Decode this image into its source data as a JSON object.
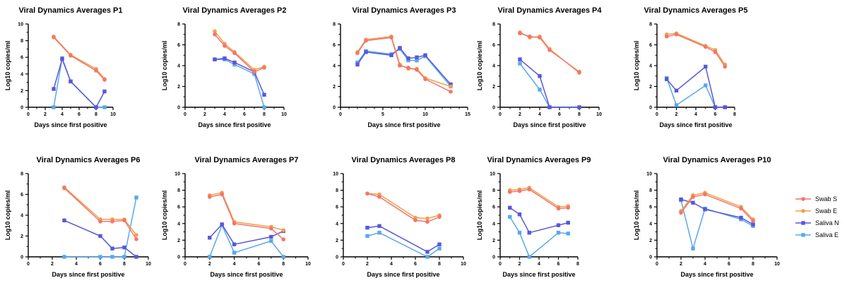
{
  "colors": {
    "swab_s": "#f4756a",
    "swab_e": "#f0a04b",
    "saliva_n": "#5757d9",
    "saliva_e": "#5aa8ea"
  },
  "legend": [
    {
      "name": "Swab S",
      "color": "#f4756a",
      "marker": "circle"
    },
    {
      "name": "Swab E",
      "color": "#f0a04b",
      "marker": "circle"
    },
    {
      "name": "Saliva N",
      "color": "#5757d9",
      "marker": "square"
    },
    {
      "name": "Saliva E",
      "color": "#5aa8ea",
      "marker": "square"
    }
  ],
  "chart_data": [
    {
      "type": "line",
      "title": "Viral Dynamics Averages P1",
      "xlabel": "Days since first positive",
      "ylabel": "Log10 copies/ml",
      "xlim": [
        0,
        10
      ],
      "ylim": [
        0,
        10
      ],
      "xticks": [
        0,
        2,
        4,
        6,
        8,
        10
      ],
      "yticks": [
        0,
        2,
        4,
        6,
        8,
        10
      ],
      "series": [
        {
          "name": "Swab S",
          "x": [
            3,
            5,
            8,
            9
          ],
          "y": [
            8.4,
            6.2,
            4.4,
            3.3
          ]
        },
        {
          "name": "Swab E",
          "x": [
            3,
            5,
            8,
            9
          ],
          "y": [
            8.5,
            6.3,
            4.6,
            3.4
          ]
        },
        {
          "name": "Saliva N",
          "x": [
            3,
            4,
            5,
            8,
            9
          ],
          "y": [
            2.2,
            5.8,
            3.1,
            0,
            1.9
          ]
        },
        {
          "name": "Saliva E",
          "x": [
            3,
            4,
            5,
            8,
            9
          ],
          "y": [
            0,
            5.9,
            3.1,
            0,
            0
          ]
        }
      ]
    },
    {
      "type": "line",
      "title": "Viral Dynamics Averages P2",
      "xlabel": "Days since first positive",
      "ylabel": "Log10 copies/ml",
      "xlim": [
        0,
        10
      ],
      "ylim": [
        0,
        8
      ],
      "xticks": [
        0,
        2,
        4,
        6,
        8,
        10
      ],
      "yticks": [
        0,
        2,
        4,
        6,
        8
      ],
      "series": [
        {
          "name": "Swab S",
          "x": [
            3,
            4,
            5,
            7,
            8
          ],
          "y": [
            7.0,
            5.9,
            5.2,
            3.4,
            3.8
          ]
        },
        {
          "name": "Swab E",
          "x": [
            3,
            4,
            5,
            7,
            8
          ],
          "y": [
            7.3,
            6.1,
            5.3,
            3.6,
            3.9
          ]
        },
        {
          "name": "Saliva N",
          "x": [
            3,
            4,
            5,
            7,
            8
          ],
          "y": [
            4.6,
            4.7,
            4.3,
            3.4,
            1.2
          ]
        },
        {
          "name": "Saliva E",
          "x": [
            3,
            4,
            5,
            7,
            8
          ],
          "y": [
            4.6,
            4.6,
            4.1,
            3.2,
            0
          ]
        }
      ]
    },
    {
      "type": "line",
      "title": "Viral Dynamics Averages P3",
      "xlabel": "Days since first positive",
      "ylabel": "",
      "xlim": [
        0,
        15
      ],
      "ylim": [
        0,
        8
      ],
      "xticks": [
        0,
        5,
        10,
        15
      ],
      "yticks": [
        0,
        2,
        4,
        6,
        8
      ],
      "series": [
        {
          "name": "Swab S",
          "x": [
            2,
            3,
            6,
            7,
            8,
            9,
            10,
            13
          ],
          "y": [
            5.2,
            6.4,
            6.7,
            4.0,
            3.8,
            3.6,
            2.7,
            1.5
          ]
        },
        {
          "name": "Swab E",
          "x": [
            2,
            3,
            6,
            7,
            8,
            9,
            10,
            13
          ],
          "y": [
            5.3,
            6.5,
            6.8,
            4.1,
            3.7,
            3.7,
            2.8,
            2.0
          ]
        },
        {
          "name": "Saliva N",
          "x": [
            2,
            3,
            6,
            7,
            8,
            9,
            10,
            13
          ],
          "y": [
            4.1,
            5.3,
            5.0,
            5.7,
            4.7,
            4.8,
            5.0,
            2.2
          ]
        },
        {
          "name": "Saliva E",
          "x": [
            2,
            3,
            6,
            7,
            8,
            9,
            10,
            13
          ],
          "y": [
            4.3,
            5.4,
            5.1,
            5.6,
            4.5,
            4.5,
            4.9,
            2.0
          ]
        }
      ]
    },
    {
      "type": "line",
      "title": "Viral Dynamics Averages P4",
      "xlabel": "Days since first positive",
      "ylabel": "Log10 copies/ml",
      "xlim": [
        0,
        10
      ],
      "ylim": [
        0,
        8
      ],
      "xticks": [
        0,
        2,
        4,
        6,
        8,
        10
      ],
      "yticks": [
        0,
        2,
        4,
        6,
        8
      ],
      "series": [
        {
          "name": "Swab S",
          "x": [
            2,
            3,
            4,
            5,
            8
          ],
          "y": [
            7.1,
            6.8,
            6.7,
            5.5,
            3.4
          ]
        },
        {
          "name": "Swab E",
          "x": [
            2,
            3,
            4,
            5,
            8
          ],
          "y": [
            7.2,
            6.7,
            6.8,
            5.6,
            3.3
          ]
        },
        {
          "name": "Saliva N",
          "x": [
            2,
            4,
            5,
            8
          ],
          "y": [
            4.6,
            3.0,
            0,
            0
          ]
        },
        {
          "name": "Saliva E",
          "x": [
            2,
            4,
            5,
            8
          ],
          "y": [
            4.2,
            1.7,
            0,
            0
          ]
        }
      ]
    },
    {
      "type": "line",
      "title": "Viral Dynamics Averages P5",
      "xlabel": "Days since first positive",
      "ylabel": "Log10 copies/ml",
      "xlim": [
        0,
        8
      ],
      "ylim": [
        0,
        8
      ],
      "xticks": [
        0,
        2,
        4,
        6,
        8
      ],
      "yticks": [
        0,
        2,
        4,
        6,
        8
      ],
      "series": [
        {
          "name": "Swab S",
          "x": [
            1,
            2,
            5,
            6,
            7
          ],
          "y": [
            6.8,
            7.0,
            5.8,
            5.3,
            3.9
          ]
        },
        {
          "name": "Swab E",
          "x": [
            1,
            2,
            5,
            6,
            7
          ],
          "y": [
            7.0,
            7.1,
            5.9,
            5.5,
            4.1
          ]
        },
        {
          "name": "Saliva N",
          "x": [
            1,
            2,
            5,
            6,
            7
          ],
          "y": [
            2.7,
            1.6,
            3.9,
            0,
            0
          ]
        },
        {
          "name": "Saliva E",
          "x": [
            1,
            2,
            5,
            6,
            7
          ],
          "y": [
            2.8,
            0.2,
            2.1,
            0,
            0
          ]
        }
      ]
    },
    {
      "type": "line",
      "title": "Viral Dynamics Averages P6",
      "xlabel": "Days since first positive",
      "ylabel": "Log10 copies/ml",
      "xlim": [
        0,
        10
      ],
      "ylim": [
        0,
        8
      ],
      "xticks": [
        0,
        2,
        4,
        6,
        8,
        10
      ],
      "yticks": [
        0,
        2,
        4,
        6,
        8
      ],
      "series": [
        {
          "name": "Swab S",
          "x": [
            3,
            6,
            7,
            8,
            9
          ],
          "y": [
            6.6,
            3.4,
            3.4,
            3.5,
            1.7
          ]
        },
        {
          "name": "Swab E",
          "x": [
            3,
            6,
            7,
            8,
            9
          ],
          "y": [
            6.7,
            3.6,
            3.6,
            3.6,
            2.1
          ]
        },
        {
          "name": "Saliva N",
          "x": [
            3,
            6,
            7,
            8,
            9
          ],
          "y": [
            3.5,
            2.0,
            0.8,
            0.9,
            0
          ]
        },
        {
          "name": "Saliva E",
          "x": [
            3,
            6,
            7,
            8,
            9
          ],
          "y": [
            0,
            0,
            0,
            0,
            5.7
          ]
        }
      ]
    },
    {
      "type": "line",
      "title": "Viral Dynamics Averages P7",
      "xlabel": "Days since first positive",
      "ylabel": "Log10 copies/ml",
      "xlim": [
        0,
        10
      ],
      "ylim": [
        0,
        10
      ],
      "xticks": [
        0,
        2,
        4,
        6,
        8,
        10
      ],
      "yticks": [
        0,
        2,
        4,
        6,
        8,
        10
      ],
      "series": [
        {
          "name": "Swab S",
          "x": [
            2,
            3,
            4,
            7,
            8
          ],
          "y": [
            7.2,
            7.5,
            4.0,
            3.4,
            2.1
          ]
        },
        {
          "name": "Swab E",
          "x": [
            2,
            3,
            4,
            7,
            8
          ],
          "y": [
            7.4,
            7.7,
            4.2,
            3.6,
            3.2
          ]
        },
        {
          "name": "Saliva N",
          "x": [
            2,
            3,
            4,
            7,
            8
          ],
          "y": [
            2.3,
            3.9,
            1.5,
            2.4,
            3.1
          ]
        },
        {
          "name": "Saliva E",
          "x": [
            2,
            3,
            4,
            7,
            8
          ],
          "y": [
            0,
            3.8,
            0.5,
            1.9,
            0
          ]
        }
      ]
    },
    {
      "type": "line",
      "title": "Viral Dynamics Averages P8",
      "xlabel": "Days since first positive",
      "ylabel": "",
      "xlim": [
        0,
        10
      ],
      "ylim": [
        0,
        10
      ],
      "xticks": [
        0,
        2,
        4,
        6,
        8,
        10
      ],
      "yticks": [
        0,
        2,
        4,
        6,
        8,
        10
      ],
      "series": [
        {
          "name": "Swab S",
          "x": [
            2,
            3,
            6,
            7,
            8
          ],
          "y": [
            7.6,
            7.2,
            4.4,
            4.2,
            4.8
          ]
        },
        {
          "name": "Swab E",
          "x": [
            2,
            3,
            6,
            7,
            8
          ],
          "y": [
            7.6,
            7.5,
            4.7,
            4.6,
            5.0
          ]
        },
        {
          "name": "Saliva N",
          "x": [
            2,
            3,
            7,
            8
          ],
          "y": [
            3.5,
            3.7,
            0.6,
            1.5
          ]
        },
        {
          "name": "Saliva E",
          "x": [
            2,
            3,
            7,
            8
          ],
          "y": [
            2.5,
            2.9,
            0,
            1.0
          ]
        }
      ]
    },
    {
      "type": "line",
      "title": "Viral Dynamics Averages P9",
      "xlabel": "Days since first positive",
      "ylabel": "Log10 copies/ml",
      "xlim": [
        0,
        8
      ],
      "ylim": [
        0,
        10
      ],
      "xticks": [
        0,
        2,
        4,
        6,
        8
      ],
      "yticks": [
        0,
        2,
        4,
        6,
        8,
        10
      ],
      "series": [
        {
          "name": "Swab S",
          "x": [
            1,
            2,
            3,
            6,
            7
          ],
          "y": [
            7.8,
            7.9,
            8.1,
            5.8,
            5.9
          ]
        },
        {
          "name": "Swab E",
          "x": [
            1,
            2,
            3,
            6,
            7
          ],
          "y": [
            8.0,
            8.1,
            8.3,
            6.0,
            6.1
          ]
        },
        {
          "name": "Saliva N",
          "x": [
            1,
            2,
            3,
            6,
            7
          ],
          "y": [
            5.9,
            5.1,
            2.9,
            3.8,
            4.1
          ]
        },
        {
          "name": "Saliva E",
          "x": [
            1,
            2,
            3,
            6,
            7
          ],
          "y": [
            4.8,
            2.9,
            0,
            2.9,
            2.8
          ]
        }
      ]
    },
    {
      "type": "line",
      "title": "Viral Dynamics Averages P10",
      "xlabel": "Days since first positive",
      "ylabel": "Log10 copies/ml",
      "xlim": [
        0,
        10
      ],
      "ylim": [
        0,
        10
      ],
      "xticks": [
        0,
        2,
        4,
        6,
        8,
        10
      ],
      "yticks": [
        0,
        2,
        4,
        6,
        8,
        10
      ],
      "series": [
        {
          "name": "Swab S",
          "x": [
            2,
            3,
            4,
            7,
            8
          ],
          "y": [
            5.3,
            7.2,
            7.5,
            5.8,
            4.3
          ]
        },
        {
          "name": "Swab E",
          "x": [
            2,
            3,
            4,
            7,
            8
          ],
          "y": [
            5.5,
            7.4,
            7.7,
            6.0,
            4.5
          ]
        },
        {
          "name": "Saliva N",
          "x": [
            2,
            3,
            4,
            7,
            8
          ],
          "y": [
            6.9,
            6.5,
            5.7,
            4.7,
            3.9
          ]
        },
        {
          "name": "Saliva E",
          "x": [
            2,
            3,
            4,
            7,
            8
          ],
          "y": [
            6.8,
            1.0,
            5.8,
            4.5,
            3.7
          ]
        }
      ]
    }
  ]
}
